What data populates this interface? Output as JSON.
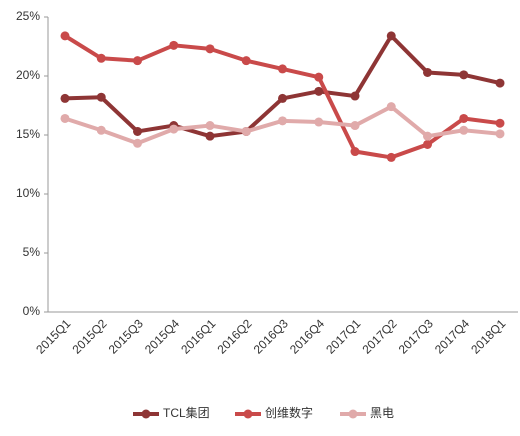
{
  "chart_data": {
    "type": "line",
    "categories": [
      "2015Q1",
      "2015Q2",
      "2015Q3",
      "2015Q4",
      "2016Q1",
      "2016Q2",
      "2016Q3",
      "2016Q4",
      "2017Q1",
      "2017Q2",
      "2017Q3",
      "2017Q4",
      "2018Q1"
    ],
    "series": [
      {
        "name": "TCL集团",
        "color": "#8e3535",
        "values": [
          18.1,
          18.2,
          15.3,
          15.8,
          14.9,
          15.3,
          18.1,
          18.7,
          18.3,
          23.4,
          20.3,
          20.1,
          19.4
        ]
      },
      {
        "name": "创维数字",
        "color": "#c94a4a",
        "values": [
          23.4,
          21.5,
          21.3,
          22.6,
          22.3,
          21.3,
          20.6,
          19.9,
          13.6,
          13.1,
          14.2,
          16.4,
          16.0
        ]
      },
      {
        "name": "黑电",
        "color": "#e0aaaa",
        "values": [
          16.4,
          15.4,
          14.3,
          15.5,
          15.8,
          15.3,
          16.2,
          16.1,
          15.8,
          17.4,
          14.9,
          15.4,
          15.1
        ]
      }
    ],
    "ylim": [
      0,
      25
    ],
    "yticks": [
      {
        "value": 0,
        "label": "0%"
      },
      {
        "value": 5,
        "label": "5%"
      },
      {
        "value": 10,
        "label": "10%"
      },
      {
        "value": 15,
        "label": "15%"
      },
      {
        "value": 20,
        "label": "20%"
      },
      {
        "value": 25,
        "label": "25%"
      }
    ],
    "legend": "bottom"
  }
}
